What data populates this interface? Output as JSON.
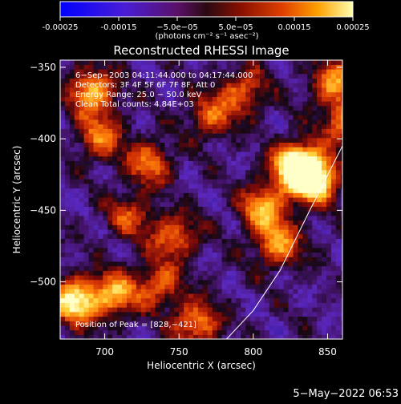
{
  "chart_data": {
    "type": "heatmap",
    "title": "Reconstructed RHESSI Image",
    "xlabel": "Heliocentric X (arcsec)",
    "ylabel": "Heliocentric Y (arcsec)",
    "xlim": [
      670,
      860
    ],
    "ylim": [
      -540,
      -345
    ],
    "x_ticks": [
      700,
      750,
      800,
      850
    ],
    "y_ticks": [
      -350,
      -400,
      -450,
      -500
    ],
    "x_tick_labels": [
      "700",
      "750",
      "800",
      "850"
    ],
    "y_tick_labels": [
      "−350",
      "−400",
      "−450",
      "−500"
    ],
    "colorbar": {
      "range": [
        -0.00025,
        0.00025
      ],
      "ticks": [
        -0.00025,
        -0.00015,
        -5e-05,
        5e-05,
        0.00015,
        0.00025
      ],
      "tick_labels": [
        "-0.00025",
        "-0.00015",
        "−5.0e−05",
        "5.0e−05",
        "0.00015",
        "0.00025"
      ],
      "units": "(photons cm⁻² s⁻¹ asec⁻²)"
    },
    "info_lines": [
      "6−Sep−2003 04:11:44.000 to 04:17:44.000",
      "Detectors: 3F 4F 5F 6F 7F 8F, Att 0",
      "Energy Range: 25.0 − 50.0 keV",
      "Clean      Total counts: 4.84E+03"
    ],
    "peak_label": "Position of Peak = [828,−421]",
    "peak": [
      828,
      -421
    ],
    "hot_spots": [
      {
        "x": 828,
        "y": -421,
        "v": 1.0
      },
      {
        "x": 840,
        "y": -430,
        "v": 0.75
      },
      {
        "x": 805,
        "y": -450,
        "v": 0.55
      },
      {
        "x": 815,
        "y": -475,
        "v": 0.5
      },
      {
        "x": 690,
        "y": -368,
        "v": 0.6
      },
      {
        "x": 695,
        "y": -400,
        "v": 0.45
      },
      {
        "x": 678,
        "y": -515,
        "v": 0.75
      },
      {
        "x": 705,
        "y": -510,
        "v": 0.55
      },
      {
        "x": 728,
        "y": -418,
        "v": 0.45
      },
      {
        "x": 745,
        "y": -470,
        "v": 0.45
      },
      {
        "x": 770,
        "y": -385,
        "v": 0.4
      },
      {
        "x": 792,
        "y": -368,
        "v": 0.4
      },
      {
        "x": 853,
        "y": -362,
        "v": 0.5
      },
      {
        "x": 860,
        "y": -390,
        "v": 0.45
      },
      {
        "x": 715,
        "y": -455,
        "v": 0.35
      },
      {
        "x": 760,
        "y": -530,
        "v": 0.5
      },
      {
        "x": 735,
        "y": -503,
        "v": 0.4
      }
    ],
    "limb_curve": [
      [
        860,
        -405
      ],
      [
        838,
        -450
      ],
      [
        818,
        -492
      ],
      [
        800,
        -520
      ],
      [
        782,
        -540
      ]
    ]
  },
  "timestamp": "5−May−2022 06:53"
}
